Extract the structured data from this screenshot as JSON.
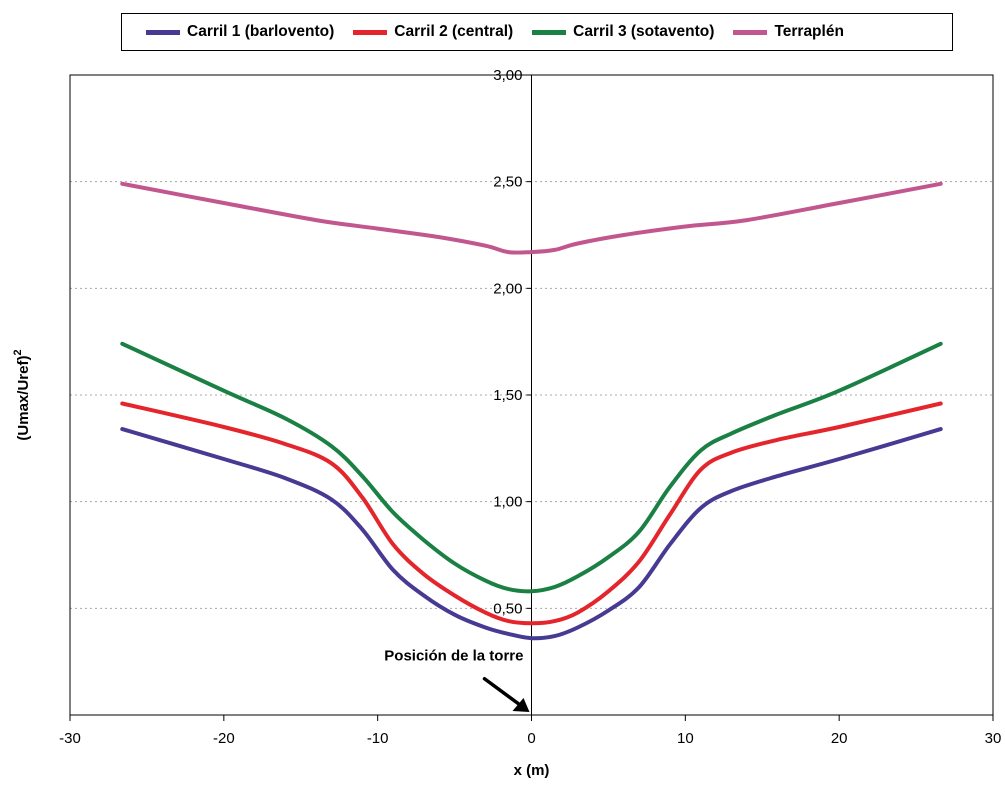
{
  "chart_data": {
    "type": "line",
    "xlabel": "x (m)",
    "ylabel": "(Umax/Uref)",
    "ylabel_superscript": "2",
    "xlim": [
      -30,
      30
    ],
    "ylim": [
      0,
      3
    ],
    "x_ticks": [
      -30,
      -20,
      -10,
      0,
      10,
      20,
      30
    ],
    "x_tick_labels": [
      "-30",
      "-20",
      "-10",
      "0",
      "10",
      "20",
      "30"
    ],
    "y_ticks": [
      0.5,
      1.0,
      1.5,
      2.0,
      2.5,
      3.0
    ],
    "y_tick_labels": [
      "0,50",
      "1,00",
      "1,50",
      "2,00",
      "2,50",
      "3,00"
    ],
    "grid": "horizontal dotted",
    "legend_position": "top",
    "annotation": "Posición de la torre",
    "series": [
      {
        "name": "Carril 1 (barlovento)",
        "color": "#463a93",
        "points": [
          [
            -26.6,
            1.34
          ],
          [
            -20,
            1.2
          ],
          [
            -16,
            1.11
          ],
          [
            -13,
            1.01
          ],
          [
            -11,
            0.87
          ],
          [
            -9,
            0.68
          ],
          [
            -7,
            0.56
          ],
          [
            -5,
            0.47
          ],
          [
            -3,
            0.41
          ],
          [
            -1.5,
            0.38
          ],
          [
            0,
            0.36
          ],
          [
            1.5,
            0.37
          ],
          [
            3,
            0.41
          ],
          [
            5,
            0.49
          ],
          [
            7,
            0.6
          ],
          [
            9,
            0.8
          ],
          [
            11,
            0.97
          ],
          [
            13,
            1.05
          ],
          [
            16,
            1.12
          ],
          [
            20,
            1.2
          ],
          [
            26.6,
            1.34
          ]
        ]
      },
      {
        "name": "Carril 2 (central)",
        "color": "#e4262c",
        "points": [
          [
            -26.6,
            1.46
          ],
          [
            -20,
            1.35
          ],
          [
            -16,
            1.27
          ],
          [
            -13,
            1.18
          ],
          [
            -11,
            1.02
          ],
          [
            -9,
            0.8
          ],
          [
            -7,
            0.66
          ],
          [
            -5,
            0.56
          ],
          [
            -3,
            0.48
          ],
          [
            -1.5,
            0.44
          ],
          [
            0,
            0.43
          ],
          [
            1.5,
            0.44
          ],
          [
            3,
            0.48
          ],
          [
            5,
            0.58
          ],
          [
            7,
            0.72
          ],
          [
            9,
            0.94
          ],
          [
            11,
            1.15
          ],
          [
            13,
            1.23
          ],
          [
            16,
            1.29
          ],
          [
            20,
            1.35
          ],
          [
            26.6,
            1.46
          ]
        ]
      },
      {
        "name": "Carril 3 (sotavento)",
        "color": "#1a8043",
        "points": [
          [
            -26.6,
            1.74
          ],
          [
            -20,
            1.52
          ],
          [
            -16,
            1.39
          ],
          [
            -13,
            1.26
          ],
          [
            -11,
            1.12
          ],
          [
            -9,
            0.95
          ],
          [
            -7,
            0.82
          ],
          [
            -5,
            0.71
          ],
          [
            -3,
            0.63
          ],
          [
            -1.5,
            0.59
          ],
          [
            0,
            0.58
          ],
          [
            1.5,
            0.6
          ],
          [
            3,
            0.65
          ],
          [
            5,
            0.74
          ],
          [
            7,
            0.86
          ],
          [
            9,
            1.07
          ],
          [
            11,
            1.24
          ],
          [
            13,
            1.32
          ],
          [
            16,
            1.41
          ],
          [
            20,
            1.52
          ],
          [
            26.6,
            1.74
          ]
        ]
      },
      {
        "name": "Terraplén",
        "color": "#c2578f",
        "points": [
          [
            -26.6,
            2.49
          ],
          [
            -20,
            2.4
          ],
          [
            -14,
            2.32
          ],
          [
            -10,
            2.28
          ],
          [
            -6,
            2.24
          ],
          [
            -3,
            2.2
          ],
          [
            -1.5,
            2.17
          ],
          [
            0,
            2.17
          ],
          [
            1.5,
            2.18
          ],
          [
            3,
            2.21
          ],
          [
            6,
            2.25
          ],
          [
            10,
            2.29
          ],
          [
            14,
            2.32
          ],
          [
            20,
            2.4
          ],
          [
            26.6,
            2.49
          ]
        ]
      }
    ]
  }
}
